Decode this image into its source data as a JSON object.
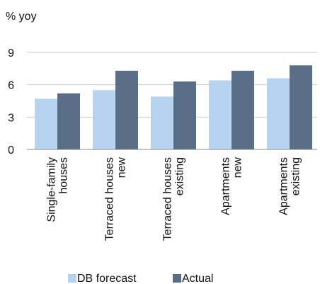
{
  "chart_data": {
    "type": "bar",
    "unit_label": "% yoy",
    "categories": [
      [
        "Single-family",
        "houses"
      ],
      [
        "Terraced houses",
        "new"
      ],
      [
        "Terraced houses",
        "existing"
      ],
      [
        "Apartments",
        "new"
      ],
      [
        "Apartments",
        "existing"
      ]
    ],
    "series": [
      {
        "name": "DB forecast",
        "color": "#b8d3ef",
        "values": [
          4.7,
          5.5,
          4.9,
          6.4,
          6.6
        ]
      },
      {
        "name": "Actual",
        "color": "#5a6f87",
        "values": [
          5.2,
          7.3,
          6.3,
          7.3,
          7.8
        ]
      }
    ],
    "yticks": [
      0,
      3,
      6,
      9
    ],
    "ylim": [
      0,
      9
    ],
    "grid": true,
    "grid_color": "#c8c8c8",
    "legend_position": "bottom"
  }
}
